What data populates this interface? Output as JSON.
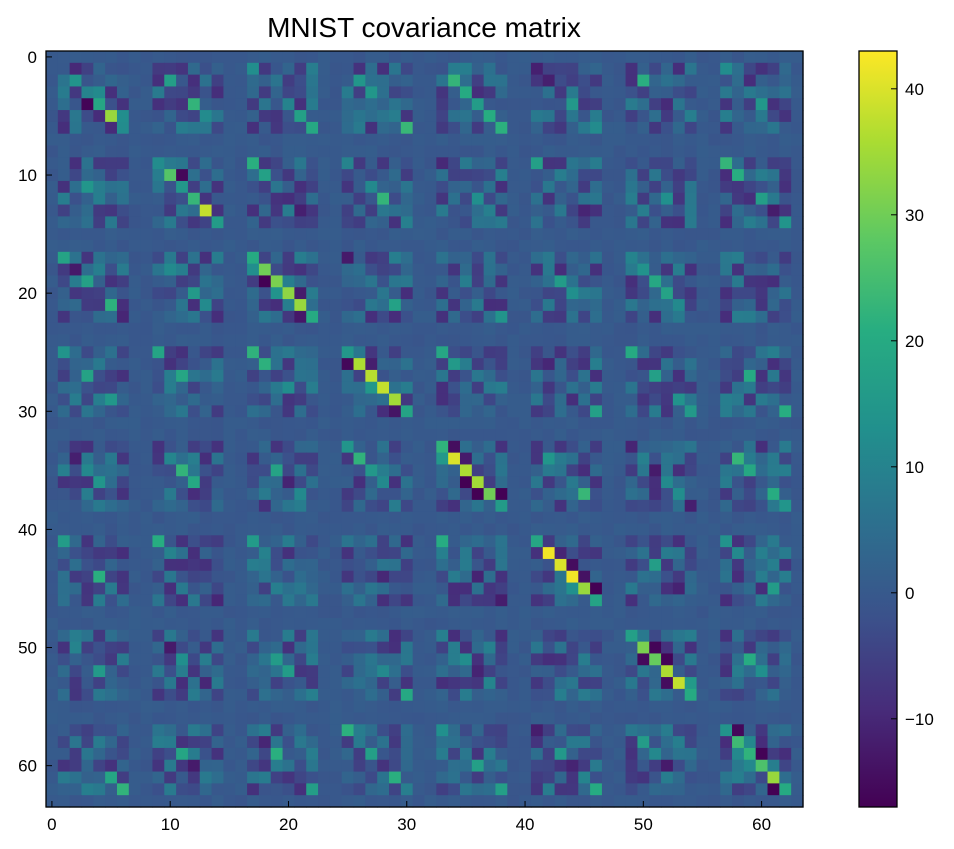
{
  "chart_data": {
    "type": "heatmap",
    "title": "MNIST covariance matrix",
    "xlabel": "",
    "ylabel": "",
    "size": 64,
    "block_size": 8,
    "xlim": [
      0,
      63
    ],
    "ylim": [
      63,
      0
    ],
    "x_ticks": [
      0,
      10,
      20,
      30,
      40,
      50,
      60
    ],
    "y_ticks": [
      0,
      10,
      20,
      30,
      40,
      50,
      60
    ],
    "x_tick_labels": [
      "0",
      "10",
      "20",
      "30",
      "40",
      "50",
      "60"
    ],
    "y_tick_labels": [
      "0",
      "10",
      "20",
      "30",
      "40",
      "50",
      "60"
    ],
    "colormap": "viridis",
    "vmin": -17,
    "vmax": 43,
    "colorbar_ticks": [
      40,
      30,
      20,
      10,
      0,
      -10
    ],
    "colorbar_tick_labels": [
      "40",
      "30",
      "20",
      "10",
      "0",
      "−10"
    ],
    "diagonal_values": [
      0,
      0,
      14,
      10,
      19,
      34,
      12,
      0,
      0,
      12,
      27,
      15,
      23,
      38,
      16,
      0,
      0,
      20,
      30,
      31,
      33,
      34,
      20,
      0,
      0,
      15,
      36,
      37,
      38,
      35,
      18,
      0,
      0,
      22,
      40,
      36,
      35,
      30,
      16,
      0,
      0,
      19,
      42,
      40,
      42,
      34,
      18,
      0,
      0,
      17,
      31,
      29,
      36,
      38,
      20,
      0,
      0,
      14,
      24,
      22,
      26,
      34,
      20,
      0
    ],
    "approx_range": [
      -17,
      43
    ],
    "grid": false,
    "colorbar": "right"
  }
}
